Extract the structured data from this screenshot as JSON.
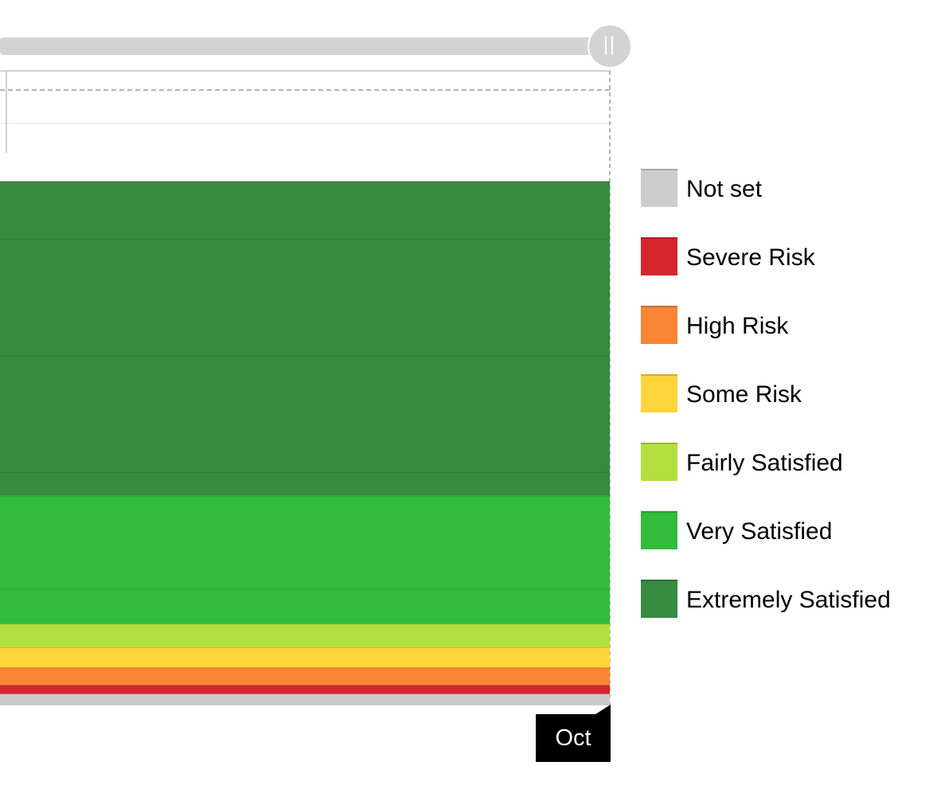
{
  "chart_data": {
    "type": "area",
    "stacked": true,
    "categories": [
      "Oct"
    ],
    "ylim": [
      0,
      1.09
    ],
    "grid": true,
    "legend_position": "right",
    "series": [
      {
        "name": "Not set",
        "values": [
          0.02
        ],
        "color": "#cccccc"
      },
      {
        "name": "Severe Risk",
        "values": [
          0.015
        ],
        "color": "#d6252c"
      },
      {
        "name": "High Risk",
        "values": [
          0.03
        ],
        "color": "#f98535"
      },
      {
        "name": "Some Risk",
        "values": [
          0.035
        ],
        "color": "#fcd53a"
      },
      {
        "name": "Fairly Satisfied",
        "values": [
          0.04
        ],
        "color": "#b3e03f"
      },
      {
        "name": "Very Satisfied",
        "values": [
          0.22
        ],
        "color": "#31bc3b"
      },
      {
        "name": "Extremely Satisfied",
        "values": [
          0.54
        ],
        "color": "#378a41"
      }
    ]
  },
  "range_slider": {
    "handle_icon": "grip-icon"
  },
  "tooltip": {
    "label": "Oct"
  }
}
